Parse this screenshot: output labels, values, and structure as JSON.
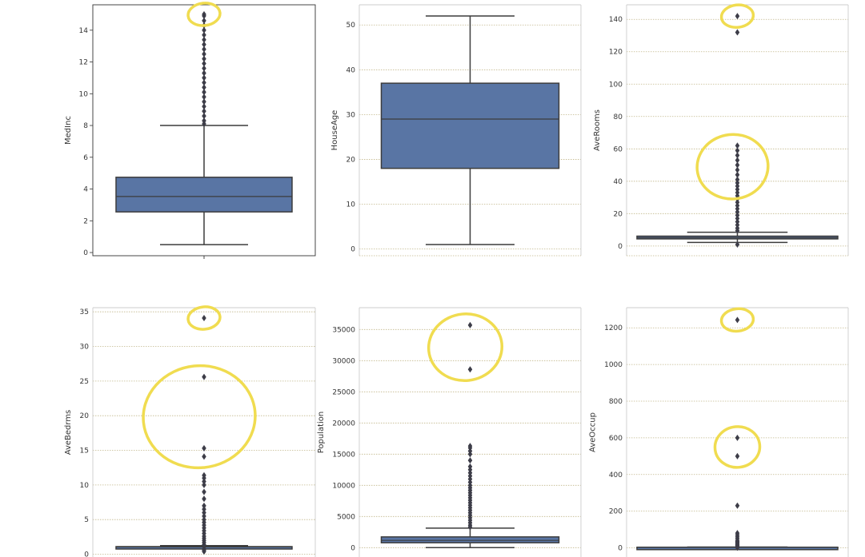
{
  "colors": {
    "box_fill": "#5975a4",
    "line": "#3c3c3c",
    "grid": "#c8c8c8",
    "grid_dotted": "#c2b88c",
    "annotation": "#f0dc50",
    "axes_frame": "#cccccc"
  },
  "chart_data": [
    {
      "type": "box",
      "ylabel": "MedInc",
      "ylim": [
        -0.2,
        15.6
      ],
      "yticks": [
        0,
        2,
        4,
        6,
        8,
        10,
        12,
        14
      ],
      "tick_labels": [
        "0",
        "2",
        "4",
        "6",
        "8",
        "10",
        "12",
        "14"
      ],
      "grid": false,
      "box": {
        "whisker_low": 0.5,
        "q1": 2.56,
        "median": 3.53,
        "q3": 4.74,
        "whisker_high": 8.0
      },
      "outliers": [
        8.1,
        8.3,
        8.6,
        8.9,
        9.2,
        9.5,
        9.8,
        10.1,
        10.4,
        10.7,
        11.0,
        11.3,
        11.6,
        11.9,
        12.2,
        12.5,
        12.8,
        13.1,
        13.4,
        13.7,
        14.0,
        14.3,
        14.6,
        14.9,
        15.0
      ],
      "annotations": [
        {
          "shape": "circle",
          "around_values": [
            15.0
          ]
        }
      ]
    },
    {
      "type": "box",
      "ylabel": "HouseAge",
      "ylim": [
        -1.5,
        54.5
      ],
      "yticks": [
        0,
        10,
        20,
        30,
        40,
        50
      ],
      "tick_labels": [
        "0",
        "10",
        "20",
        "30",
        "40",
        "50"
      ],
      "grid": true,
      "box": {
        "whisker_low": 1,
        "q1": 18,
        "median": 29,
        "q3": 37,
        "whisker_high": 52
      },
      "outliers": [],
      "annotations": []
    },
    {
      "type": "box",
      "ylabel": "AveRooms",
      "ylim": [
        -6,
        149
      ],
      "yticks": [
        0,
        20,
        40,
        60,
        80,
        100,
        120,
        140
      ],
      "tick_labels": [
        "0",
        "20",
        "40",
        "60",
        "80",
        "100",
        "120",
        "140"
      ],
      "grid": true,
      "box": {
        "whisker_low": 2.2,
        "q1": 4.4,
        "median": 5.2,
        "q3": 6.1,
        "whisker_high": 8.5
      },
      "outliers": [
        0.9,
        9.5,
        11,
        13,
        15,
        17,
        19,
        21,
        23,
        25,
        27,
        29,
        31,
        33,
        35,
        37,
        39,
        41,
        44,
        47,
        50,
        53,
        56,
        59,
        62,
        132,
        142
      ],
      "annotations": [
        {
          "shape": "circle",
          "around_values": [
            142
          ]
        },
        {
          "shape": "circle",
          "around_values": [
            36,
            62
          ]
        }
      ]
    },
    {
      "type": "box",
      "ylabel": "AveBedrms",
      "ylim": [
        -0.4,
        35.6
      ],
      "yticks": [
        0,
        5,
        10,
        15,
        20,
        25,
        30,
        35
      ],
      "tick_labels": [
        "0",
        "5",
        "10",
        "15",
        "20",
        "25",
        "30",
        "35"
      ],
      "grid": true,
      "box": {
        "whisker_low": 0.87,
        "q1": 1.01,
        "median": 1.05,
        "q3": 1.1,
        "whisker_high": 1.24
      },
      "outliers": [
        0.4,
        0.6,
        0.8,
        1.4,
        1.7,
        2.0,
        2.3,
        2.6,
        3.0,
        3.4,
        3.8,
        4.2,
        4.6,
        5.0,
        5.5,
        6.0,
        6.5,
        7.0,
        8.0,
        9.0,
        10.0,
        10.5,
        11.0,
        11.4,
        14.1,
        15.3,
        25.6,
        34.1
      ],
      "annotations": [
        {
          "shape": "circle",
          "around_values": [
            34.1
          ]
        },
        {
          "shape": "circle",
          "around_values": [
            14.1,
            25.6
          ]
        }
      ]
    },
    {
      "type": "box",
      "ylabel": "Population",
      "ylim": [
        -1500,
        38500
      ],
      "yticks": [
        0,
        5000,
        10000,
        15000,
        20000,
        25000,
        30000,
        35000
      ],
      "tick_labels": [
        "0",
        "5000",
        "10000",
        "15000",
        "20000",
        "25000",
        "30000",
        "35000"
      ],
      "grid": true,
      "box": {
        "whisker_low": 3,
        "q1": 787,
        "median": 1166,
        "q3": 1725,
        "whisker_high": 3132
      },
      "outliers": [
        3300,
        3600,
        4000,
        4400,
        4800,
        5200,
        5600,
        6000,
        6400,
        6800,
        7200,
        7600,
        8000,
        8400,
        8800,
        9200,
        9600,
        10000,
        10500,
        11000,
        11500,
        12000,
        12500,
        13000,
        14000,
        15000,
        15500,
        16000,
        16300,
        28600,
        35700
      ],
      "annotations": [
        {
          "shape": "circle",
          "around_values": [
            28600,
            35700
          ]
        }
      ]
    },
    {
      "type": "box",
      "ylabel": "AveOccup",
      "ylim": [
        -50,
        1310
      ],
      "yticks": [
        0,
        200,
        400,
        600,
        800,
        1000,
        1200
      ],
      "tick_labels": [
        "0",
        "200",
        "400",
        "600",
        "800",
        "1000",
        "1200"
      ],
      "grid": true,
      "box": {
        "whisker_low": 1.2,
        "q1": 2.43,
        "median": 2.82,
        "q3": 3.28,
        "whisker_high": 4.56
      },
      "outliers": [
        0.8,
        5,
        8,
        12,
        16,
        20,
        25,
        30,
        35,
        40,
        50,
        60,
        70,
        80,
        230,
        500,
        600,
        1243
      ],
      "annotations": [
        {
          "shape": "circle",
          "around_values": [
            1243
          ]
        },
        {
          "shape": "circle",
          "around_values": [
            500,
            600
          ]
        }
      ]
    }
  ]
}
